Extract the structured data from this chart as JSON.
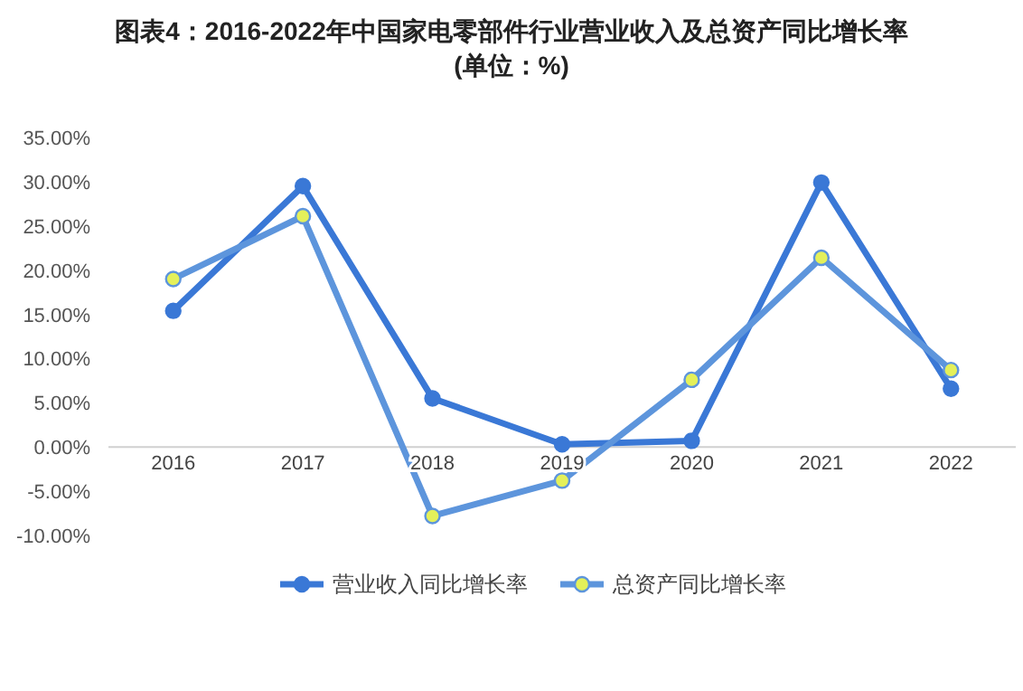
{
  "chart_data": {
    "type": "line",
    "title": "图表4：2016-2022年中国家电零部件行业营业收入及总资产同比增长率",
    "subtitle": "(单位：%)",
    "categories": [
      "2016",
      "2017",
      "2018",
      "2019",
      "2020",
      "2021",
      "2022"
    ],
    "series": [
      {
        "name": "营业收入同比增长率",
        "color": "#3a78d6",
        "values": [
          15.4,
          29.5,
          5.5,
          0.3,
          0.7,
          29.9,
          6.6
        ]
      },
      {
        "name": "总资产同比增长率",
        "color": "#5d95dc",
        "values": [
          19.0,
          26.1,
          -7.8,
          -3.8,
          7.6,
          21.4,
          8.7
        ]
      }
    ],
    "ylim": [
      -10,
      35
    ],
    "yticks": [
      {
        "value": -10,
        "label": "-10.00%"
      },
      {
        "value": -5,
        "label": "-5.00%"
      },
      {
        "value": 0,
        "label": "0.00%"
      },
      {
        "value": 5,
        "label": "5.00%"
      },
      {
        "value": 10,
        "label": "10.00%"
      },
      {
        "value": 15,
        "label": "15.00%"
      },
      {
        "value": 20,
        "label": "20.00%"
      },
      {
        "value": 25,
        "label": "25.00%"
      },
      {
        "value": 30,
        "label": "30.00%"
      },
      {
        "value": 35,
        "label": "35.00%"
      }
    ],
    "grid": false,
    "legend": "bottom",
    "marker": "circle",
    "line_style": "solid"
  }
}
